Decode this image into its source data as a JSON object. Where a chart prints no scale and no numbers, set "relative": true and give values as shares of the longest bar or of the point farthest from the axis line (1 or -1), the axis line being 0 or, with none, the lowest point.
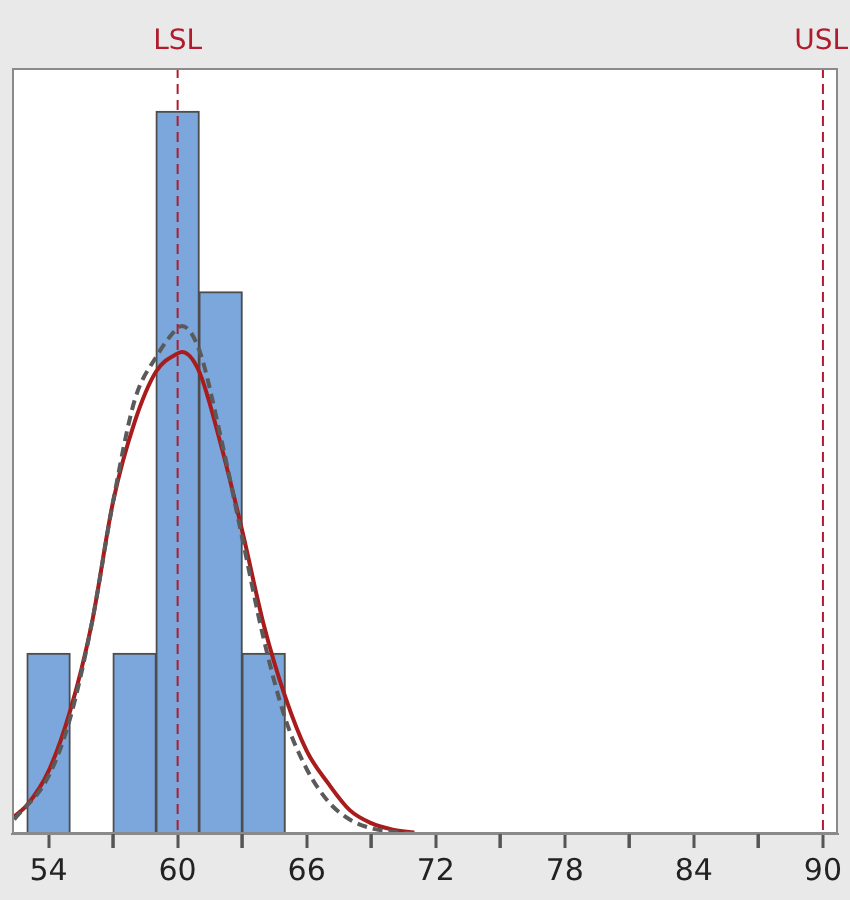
{
  "chart_data": {
    "type": "histogram",
    "relative": true,
    "bins": [
      53,
      55,
      57,
      59,
      61,
      63,
      65
    ],
    "values": [
      0.25,
      0,
      0.25,
      1,
      0.75,
      0.25
    ],
    "color": "#7ba7dc",
    "series": [
      {
        "type": "line",
        "color": "#5a5a5a",
        "line_style": "dashed",
        "x": [
          52.4,
          54,
          55,
          56,
          57,
          58,
          59,
          60,
          60.2,
          61,
          62,
          63,
          64,
          65,
          66,
          67,
          68,
          69,
          70,
          71
        ],
        "values": [
          0.02,
          0.08,
          0.16,
          0.29,
          0.46,
          0.6,
          0.66,
          0.7,
          0.703,
          0.67,
          0.55,
          0.41,
          0.27,
          0.16,
          0.09,
          0.045,
          0.02,
          0.008,
          0.003,
          0.001
        ]
      },
      {
        "type": "line",
        "color": "#a81c1c",
        "line_style": "solid",
        "x": [
          52.4,
          53,
          54,
          55,
          56,
          57,
          58,
          59,
          60,
          60.2,
          61,
          62,
          63,
          64,
          65,
          66,
          67,
          68,
          69,
          70,
          71
        ],
        "values": [
          0.024,
          0.04,
          0.087,
          0.17,
          0.29,
          0.46,
          0.57,
          0.64,
          0.665,
          0.667,
          0.64,
          0.54,
          0.42,
          0.29,
          0.19,
          0.115,
          0.07,
          0.033,
          0.015,
          0.006,
          0.002
        ]
      }
    ],
    "xlim": [
      52.3,
      90.7
    ],
    "xticks": [
      54,
      {
        "value": 57,
        "label": null
      },
      60,
      {
        "value": 63,
        "label": null
      },
      66,
      {
        "value": 69,
        "label": null
      },
      72,
      {
        "value": 75,
        "label": null
      },
      78,
      {
        "value": 81,
        "label": null
      },
      84,
      {
        "value": 87,
        "label": null
      },
      90
    ],
    "ref_lines": [
      {
        "axis": "x",
        "value": 60,
        "label": "LSL",
        "color": "#b01c2e",
        "line_style": "dashed"
      },
      {
        "axis": "x",
        "value": 90,
        "label": "USL",
        "color": "#b01c2e",
        "line_style": "dashed"
      }
    ],
    "grid": false,
    "legend": false,
    "marker": "none"
  }
}
